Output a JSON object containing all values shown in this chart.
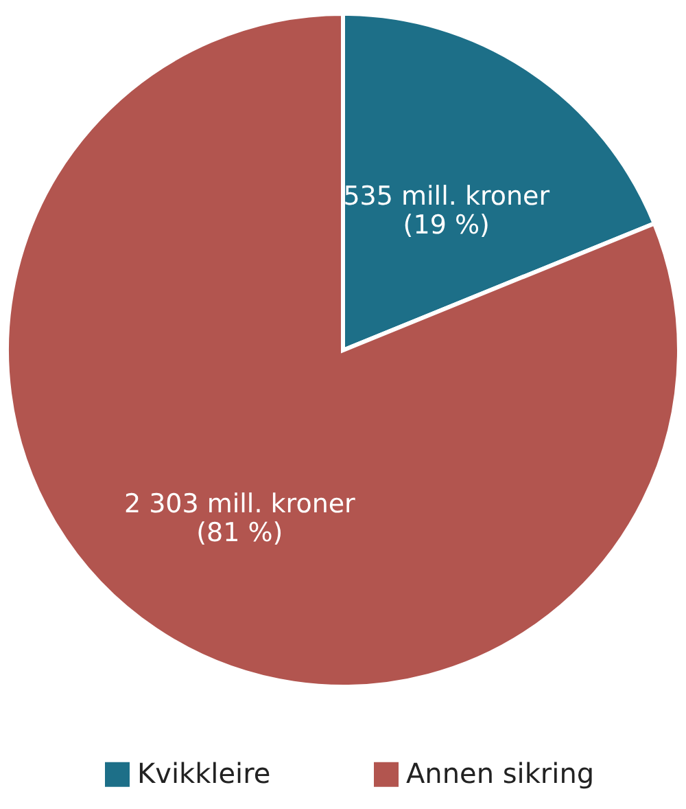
{
  "chart_data": {
    "type": "pie",
    "categories": [
      "Kvikkleire",
      "Annen sikring"
    ],
    "values": [
      535,
      2303
    ],
    "colors": [
      "#1d6f88",
      "#b2554f"
    ],
    "value_labels": [
      "535 mill. kroner\n(19 %)",
      "2 303 mill. kroner\n(81 %)"
    ],
    "legend": "bottom"
  }
}
